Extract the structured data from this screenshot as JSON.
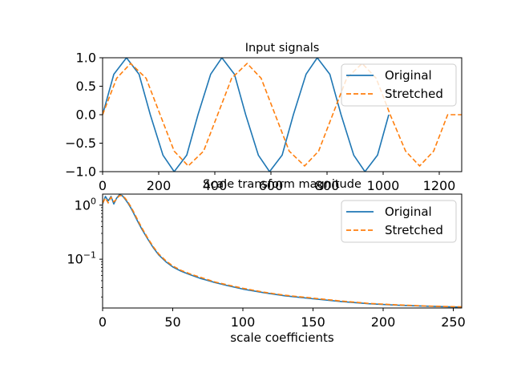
{
  "chart_data": [
    {
      "type": "line",
      "title": "Input signals",
      "xlabel": "",
      "ylabel": "",
      "xlim": [
        0,
        1280
      ],
      "ylim": [
        -1.0,
        1.0
      ],
      "grid": false,
      "legend": "upper right",
      "x_ticks": [
        "0",
        "200",
        "400",
        "600",
        "800",
        "1000",
        "1200"
      ],
      "y_ticks": [
        "1.0",
        "0.5",
        "0.0",
        "−0.5",
        "−1.0"
      ],
      "series": [
        {
          "name": "Original",
          "color": "#1f77b4",
          "style": "solid",
          "x": [
            0,
            40,
            85,
            130,
            170,
            215,
            255,
            300,
            340,
            385,
            425,
            470,
            510,
            555,
            595,
            640,
            680,
            725,
            765,
            810,
            850,
            895,
            935,
            980,
            1020
          ],
          "y": [
            0,
            0.71,
            1.0,
            0.71,
            0,
            -0.71,
            -1.0,
            -0.71,
            0,
            0.71,
            1.0,
            0.71,
            0,
            -0.71,
            -1.0,
            -0.71,
            0,
            0.71,
            1.0,
            0.71,
            0,
            -0.71,
            -1.0,
            -0.71,
            0
          ]
        },
        {
          "name": "Stretched",
          "color": "#ff7f0e",
          "style": "dashed",
          "x": [
            0,
            50,
            100,
            155,
            205,
            255,
            305,
            360,
            410,
            460,
            515,
            565,
            615,
            665,
            720,
            770,
            820,
            870,
            925,
            975,
            1025,
            1080,
            1130,
            1180,
            1230,
            1280
          ],
          "y": [
            0,
            0.64,
            0.9,
            0.64,
            0,
            -0.64,
            -0.9,
            -0.64,
            0,
            0.64,
            0.9,
            0.64,
            0,
            -0.64,
            -0.9,
            -0.64,
            0,
            0.64,
            0.9,
            0.64,
            0,
            -0.64,
            -0.9,
            -0.64,
            0,
            0.0
          ]
        }
      ]
    },
    {
      "type": "line",
      "title": "Scale transform magnitude",
      "xlabel": "scale coefficients",
      "ylabel": "",
      "xlim": [
        0,
        256
      ],
      "ylim": [
        0.0125,
        1.6
      ],
      "yscale": "log",
      "grid": false,
      "legend": "upper right",
      "x_ticks": [
        "0",
        "50",
        "100",
        "150",
        "200",
        "250"
      ],
      "y_ticks": [
        {
          "value": 1.0,
          "base": "10",
          "exp": "0"
        },
        {
          "value": 0.1,
          "base": "10",
          "exp": "−1"
        }
      ],
      "series": [
        {
          "name": "Original",
          "color": "#1f77b4",
          "style": "solid",
          "x": [
            0,
            2,
            4,
            6,
            8,
            10,
            12,
            14,
            16,
            18,
            20,
            22,
            25,
            28,
            32,
            36,
            40,
            45,
            50,
            56,
            62,
            70,
            80,
            90,
            100,
            115,
            130,
            150,
            170,
            190,
            210,
            230,
            256
          ],
          "y": [
            1.05,
            1.45,
            1.2,
            1.45,
            1.05,
            1.35,
            1.55,
            1.5,
            1.3,
            1.1,
            0.9,
            0.72,
            0.5,
            0.36,
            0.24,
            0.165,
            0.12,
            0.09,
            0.072,
            0.06,
            0.052,
            0.044,
            0.037,
            0.032,
            0.028,
            0.024,
            0.021,
            0.0185,
            0.0165,
            0.015,
            0.0141,
            0.0135,
            0.013
          ]
        },
        {
          "name": "Stretched",
          "color": "#ff7f0e",
          "style": "dashed",
          "x": [
            0,
            2,
            4,
            6,
            8,
            10,
            12,
            14,
            16,
            18,
            20,
            22,
            25,
            28,
            32,
            36,
            40,
            45,
            50,
            56,
            62,
            70,
            80,
            90,
            100,
            115,
            130,
            150,
            170,
            190,
            210,
            230,
            256
          ],
          "y": [
            1.1,
            1.35,
            1.1,
            1.4,
            1.15,
            1.3,
            1.5,
            1.5,
            1.35,
            1.15,
            0.95,
            0.76,
            0.53,
            0.38,
            0.25,
            0.172,
            0.125,
            0.094,
            0.075,
            0.062,
            0.054,
            0.046,
            0.038,
            0.033,
            0.029,
            0.0245,
            0.0215,
            0.019,
            0.0168,
            0.0152,
            0.0143,
            0.0136,
            0.0131
          ]
        }
      ]
    }
  ]
}
